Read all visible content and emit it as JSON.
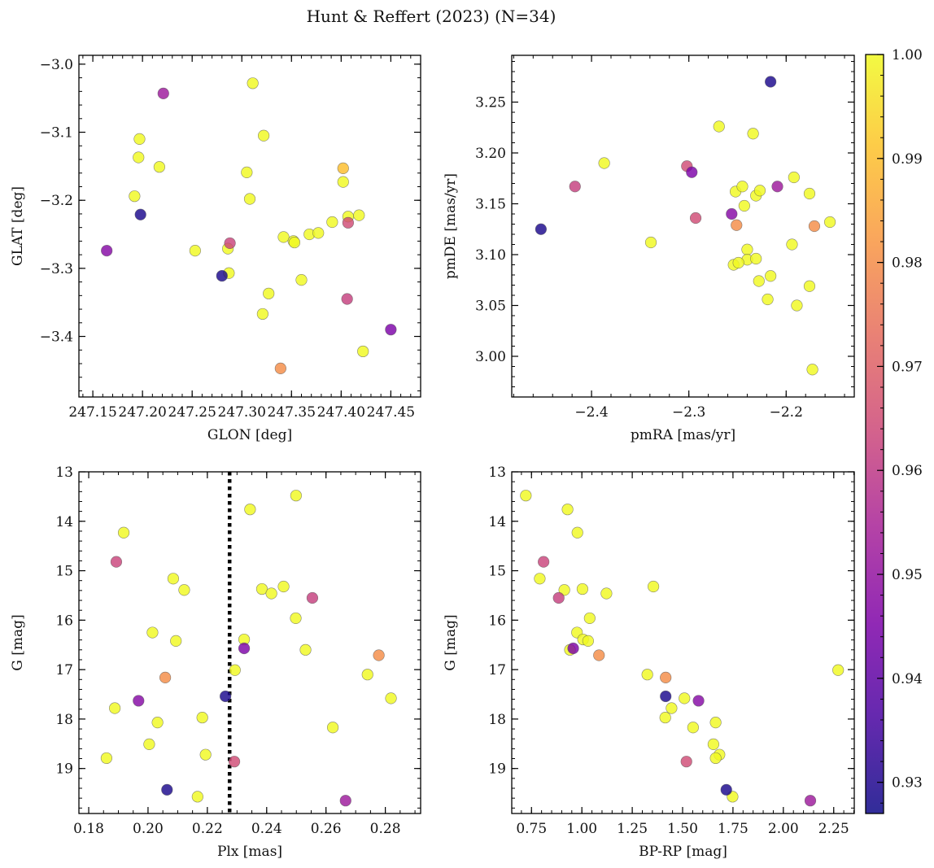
{
  "figure": {
    "title": "Hunt & Reffert (2023) (N=34)"
  },
  "chart_data": [
    {
      "type": "scatter",
      "id": "glon-glat",
      "xlabel": "GLON [deg]",
      "ylabel": "GLAT [deg]",
      "xlim": [
        247.136,
        247.48
      ],
      "ylim": [
        -3.489,
        -2.987
      ],
      "yinvert": false,
      "xticks": [
        247.15,
        247.2,
        247.25,
        247.3,
        247.35,
        247.4,
        247.45
      ],
      "xtick_labels": [
        "247.15",
        "247.20",
        "247.25",
        "247.30",
        "247.35",
        "247.40",
        "247.45"
      ],
      "xminor": 0.01,
      "yticks": [
        -3.4,
        -3.3,
        -3.2,
        -3.1,
        -3.0
      ],
      "ytick_labels": [
        "−3.4",
        "−3.3",
        "−3.2",
        "−3.1",
        "−3.0"
      ],
      "yminor": 0.02,
      "points": [
        {
          "x": 247.164,
          "y": -3.274,
          "p": 0.947
        },
        {
          "x": 247.221,
          "y": -3.043,
          "p": 0.952
        },
        {
          "x": 247.198,
          "y": -3.221,
          "p": 0.929
        },
        {
          "x": 247.28,
          "y": -3.311,
          "p": 0.929
        },
        {
          "x": 247.288,
          "y": -3.263,
          "p": 0.963
        },
        {
          "x": 247.407,
          "y": -3.233,
          "p": 0.965
        },
        {
          "x": 247.406,
          "y": -3.345,
          "p": 0.962
        },
        {
          "x": 247.45,
          "y": -3.39,
          "p": 0.945
        },
        {
          "x": 247.339,
          "y": -3.447,
          "p": 0.98
        },
        {
          "x": 247.402,
          "y": -3.153,
          "p": 0.99
        },
        {
          "x": 247.311,
          "y": -3.028,
          "p": 1.0
        },
        {
          "x": 247.197,
          "y": -3.11,
          "p": 1.0
        },
        {
          "x": 247.196,
          "y": -3.137,
          "p": 1.0
        },
        {
          "x": 247.217,
          "y": -3.151,
          "p": 1.0
        },
        {
          "x": 247.192,
          "y": -3.194,
          "p": 1.0
        },
        {
          "x": 247.322,
          "y": -3.105,
          "p": 1.0
        },
        {
          "x": 247.305,
          "y": -3.159,
          "p": 1.0
        },
        {
          "x": 247.308,
          "y": -3.198,
          "p": 1.0
        },
        {
          "x": 247.253,
          "y": -3.274,
          "p": 1.0
        },
        {
          "x": 247.286,
          "y": -3.271,
          "p": 1.0
        },
        {
          "x": 247.287,
          "y": -3.307,
          "p": 1.0
        },
        {
          "x": 247.342,
          "y": -3.254,
          "p": 1.0
        },
        {
          "x": 247.352,
          "y": -3.26,
          "p": 1.0
        },
        {
          "x": 247.353,
          "y": -3.262,
          "p": 1.0
        },
        {
          "x": 247.368,
          "y": -3.25,
          "p": 1.0
        },
        {
          "x": 247.377,
          "y": -3.248,
          "p": 1.0
        },
        {
          "x": 247.391,
          "y": -3.232,
          "p": 1.0
        },
        {
          "x": 247.402,
          "y": -3.173,
          "p": 1.0
        },
        {
          "x": 247.407,
          "y": -3.224,
          "p": 1.0
        },
        {
          "x": 247.418,
          "y": -3.222,
          "p": 1.0
        },
        {
          "x": 247.327,
          "y": -3.337,
          "p": 1.0
        },
        {
          "x": 247.36,
          "y": -3.317,
          "p": 1.0
        },
        {
          "x": 247.321,
          "y": -3.367,
          "p": 1.0
        },
        {
          "x": 247.422,
          "y": -3.422,
          "p": 1.0
        }
      ]
    },
    {
      "type": "scatter",
      "id": "pm",
      "xlabel": "pmRA [mas/yr]",
      "ylabel": "pmDE [mas/yr]",
      "xlim": [
        -2.482,
        -2.13
      ],
      "ylim": [
        2.96,
        3.296
      ],
      "yinvert": false,
      "xticks": [
        -2.4,
        -2.3,
        -2.2
      ],
      "xtick_labels": [
        "−2.4",
        "−2.3",
        "−2.2"
      ],
      "xminor": 0.02,
      "yticks": [
        3.0,
        3.05,
        3.1,
        3.15,
        3.2,
        3.25
      ],
      "ytick_labels": [
        "3.00",
        "3.05",
        "3.10",
        "3.15",
        "3.20",
        "3.25"
      ],
      "yminor": 0.01,
      "points": [
        {
          "x": -2.452,
          "y": 3.125,
          "p": 0.929
        },
        {
          "x": -2.417,
          "y": 3.167,
          "p": 0.962
        },
        {
          "x": -2.302,
          "y": 3.187,
          "p": 0.965
        },
        {
          "x": -2.297,
          "y": 3.181,
          "p": 0.945
        },
        {
          "x": -2.293,
          "y": 3.136,
          "p": 0.965
        },
        {
          "x": -2.256,
          "y": 3.14,
          "p": 0.947
        },
        {
          "x": -2.216,
          "y": 3.27,
          "p": 0.929
        },
        {
          "x": -2.209,
          "y": 3.167,
          "p": 0.952
        },
        {
          "x": -2.251,
          "y": 3.129,
          "p": 0.98
        },
        {
          "x": -2.171,
          "y": 3.128,
          "p": 0.98
        },
        {
          "x": -2.387,
          "y": 3.19,
          "p": 1.0
        },
        {
          "x": -2.339,
          "y": 3.112,
          "p": 1.0
        },
        {
          "x": -2.269,
          "y": 3.226,
          "p": 1.0
        },
        {
          "x": -2.234,
          "y": 3.219,
          "p": 1.0
        },
        {
          "x": -2.252,
          "y": 3.162,
          "p": 1.0
        },
        {
          "x": -2.245,
          "y": 3.167,
          "p": 1.0
        },
        {
          "x": -2.243,
          "y": 3.148,
          "p": 1.0
        },
        {
          "x": -2.231,
          "y": 3.158,
          "p": 1.0
        },
        {
          "x": -2.227,
          "y": 3.163,
          "p": 1.0
        },
        {
          "x": -2.192,
          "y": 3.176,
          "p": 1.0
        },
        {
          "x": -2.176,
          "y": 3.16,
          "p": 1.0
        },
        {
          "x": -2.155,
          "y": 3.132,
          "p": 1.0
        },
        {
          "x": -2.194,
          "y": 3.11,
          "p": 1.0
        },
        {
          "x": -2.24,
          "y": 3.105,
          "p": 1.0
        },
        {
          "x": -2.24,
          "y": 3.095,
          "p": 1.0
        },
        {
          "x": -2.231,
          "y": 3.096,
          "p": 1.0
        },
        {
          "x": -2.254,
          "y": 3.09,
          "p": 1.0
        },
        {
          "x": -2.249,
          "y": 3.092,
          "p": 1.0
        },
        {
          "x": -2.216,
          "y": 3.079,
          "p": 1.0
        },
        {
          "x": -2.228,
          "y": 3.074,
          "p": 1.0
        },
        {
          "x": -2.219,
          "y": 3.056,
          "p": 1.0
        },
        {
          "x": -2.176,
          "y": 3.069,
          "p": 1.0
        },
        {
          "x": -2.189,
          "y": 3.05,
          "p": 1.0
        },
        {
          "x": -2.173,
          "y": 2.987,
          "p": 1.0
        }
      ]
    },
    {
      "type": "scatter",
      "id": "plx-g",
      "xlabel": "Plx [mas]",
      "ylabel": "G [mag]",
      "xlim": [
        0.1767,
        0.2919
      ],
      "ylim": [
        13.0,
        19.91
      ],
      "yinvert": true,
      "xticks": [
        0.18,
        0.2,
        0.22,
        0.24,
        0.26,
        0.28
      ],
      "xtick_labels": [
        "0.18",
        "0.20",
        "0.22",
        "0.24",
        "0.26",
        "0.28"
      ],
      "xminor": 0.005,
      "yticks": [
        13,
        14,
        15,
        16,
        17,
        18,
        19
      ],
      "ytick_labels": [
        "13",
        "14",
        "15",
        "16",
        "17",
        "18",
        "19"
      ],
      "yminor": 0.2,
      "vline": {
        "x": 0.2275
      },
      "points": [
        {
          "x": 0.1893,
          "y": 14.82,
          "p": 0.963
        },
        {
          "x": 0.1968,
          "y": 17.63,
          "p": 0.947
        },
        {
          "x": 0.2064,
          "y": 19.43,
          "p": 0.929
        },
        {
          "x": 0.2058,
          "y": 17.16,
          "p": 0.98
        },
        {
          "x": 0.2261,
          "y": 17.54,
          "p": 0.929
        },
        {
          "x": 0.2324,
          "y": 16.57,
          "p": 0.945
        },
        {
          "x": 0.2291,
          "y": 18.86,
          "p": 0.965
        },
        {
          "x": 0.2554,
          "y": 15.55,
          "p": 0.962
        },
        {
          "x": 0.2778,
          "y": 16.71,
          "p": 0.98
        },
        {
          "x": 0.2666,
          "y": 19.65,
          "p": 0.952
        },
        {
          "x": 0.1918,
          "y": 14.23,
          "p": 1.0
        },
        {
          "x": 0.2499,
          "y": 13.48,
          "p": 1.0
        },
        {
          "x": 0.2344,
          "y": 13.76,
          "p": 1.0
        },
        {
          "x": 0.2085,
          "y": 15.16,
          "p": 1.0
        },
        {
          "x": 0.2122,
          "y": 15.39,
          "p": 1.0
        },
        {
          "x": 0.2384,
          "y": 15.37,
          "p": 1.0
        },
        {
          "x": 0.2416,
          "y": 15.46,
          "p": 1.0
        },
        {
          "x": 0.2457,
          "y": 15.32,
          "p": 1.0
        },
        {
          "x": 0.2015,
          "y": 16.25,
          "p": 1.0
        },
        {
          "x": 0.2094,
          "y": 16.42,
          "p": 1.0
        },
        {
          "x": 0.2324,
          "y": 16.39,
          "p": 1.0
        },
        {
          "x": 0.2498,
          "y": 15.96,
          "p": 1.0
        },
        {
          "x": 0.2531,
          "y": 16.6,
          "p": 1.0
        },
        {
          "x": 0.2293,
          "y": 17.01,
          "p": 1.0
        },
        {
          "x": 0.274,
          "y": 17.1,
          "p": 1.0
        },
        {
          "x": 0.2819,
          "y": 17.58,
          "p": 1.0
        },
        {
          "x": 0.1888,
          "y": 17.78,
          "p": 1.0
        },
        {
          "x": 0.2032,
          "y": 18.07,
          "p": 1.0
        },
        {
          "x": 0.2183,
          "y": 17.97,
          "p": 1.0
        },
        {
          "x": 0.2623,
          "y": 18.17,
          "p": 1.0
        },
        {
          "x": 0.2004,
          "y": 18.51,
          "p": 1.0
        },
        {
          "x": 0.186,
          "y": 18.79,
          "p": 1.0
        },
        {
          "x": 0.2194,
          "y": 18.72,
          "p": 1.0
        },
        {
          "x": 0.2167,
          "y": 19.57,
          "p": 1.0
        }
      ]
    },
    {
      "type": "scatter",
      "id": "cmd",
      "xlabel": "BP-RP [mag]",
      "ylabel": "G [mag]",
      "xlim": [
        0.652,
        2.352
      ],
      "ylim": [
        13.0,
        19.91
      ],
      "yinvert": true,
      "xticks": [
        0.75,
        1.0,
        1.25,
        1.5,
        1.75,
        2.0,
        2.25
      ],
      "xtick_labels": [
        "0.75",
        "1.00",
        "1.25",
        "1.50",
        "1.75",
        "2.00",
        "2.25"
      ],
      "xminor": 0.05,
      "yticks": [
        13,
        14,
        15,
        16,
        17,
        18,
        19
      ],
      "ytick_labels": [
        "13",
        "14",
        "15",
        "16",
        "17",
        "18",
        "19"
      ],
      "yminor": 0.2,
      "points": [
        {
          "x": 0.81,
          "y": 14.82,
          "p": 0.963
        },
        {
          "x": 0.885,
          "y": 15.55,
          "p": 0.962
        },
        {
          "x": 0.957,
          "y": 16.57,
          "p": 0.945
        },
        {
          "x": 1.085,
          "y": 16.71,
          "p": 0.98
        },
        {
          "x": 1.416,
          "y": 17.16,
          "p": 0.98
        },
        {
          "x": 1.416,
          "y": 17.54,
          "p": 0.929
        },
        {
          "x": 1.579,
          "y": 17.63,
          "p": 0.947
        },
        {
          "x": 1.519,
          "y": 18.86,
          "p": 0.965
        },
        {
          "x": 1.717,
          "y": 19.43,
          "p": 0.929
        },
        {
          "x": 2.134,
          "y": 19.65,
          "p": 0.952
        },
        {
          "x": 0.722,
          "y": 13.48,
          "p": 1.0
        },
        {
          "x": 0.929,
          "y": 13.76,
          "p": 1.0
        },
        {
          "x": 0.978,
          "y": 14.23,
          "p": 1.0
        },
        {
          "x": 0.791,
          "y": 15.16,
          "p": 1.0
        },
        {
          "x": 0.913,
          "y": 15.39,
          "p": 1.0
        },
        {
          "x": 1.003,
          "y": 15.37,
          "p": 1.0
        },
        {
          "x": 1.122,
          "y": 15.46,
          "p": 1.0
        },
        {
          "x": 1.355,
          "y": 15.32,
          "p": 1.0
        },
        {
          "x": 1.039,
          "y": 15.96,
          "p": 1.0
        },
        {
          "x": 0.976,
          "y": 16.25,
          "p": 1.0
        },
        {
          "x": 1.006,
          "y": 16.39,
          "p": 1.0
        },
        {
          "x": 1.031,
          "y": 16.42,
          "p": 1.0
        },
        {
          "x": 0.941,
          "y": 16.6,
          "p": 1.0
        },
        {
          "x": 1.325,
          "y": 17.1,
          "p": 1.0
        },
        {
          "x": 1.509,
          "y": 17.58,
          "p": 1.0
        },
        {
          "x": 1.445,
          "y": 17.78,
          "p": 1.0
        },
        {
          "x": 1.414,
          "y": 17.97,
          "p": 1.0
        },
        {
          "x": 1.664,
          "y": 18.07,
          "p": 1.0
        },
        {
          "x": 1.552,
          "y": 18.17,
          "p": 1.0
        },
        {
          "x": 1.653,
          "y": 18.51,
          "p": 1.0
        },
        {
          "x": 1.683,
          "y": 18.72,
          "p": 1.0
        },
        {
          "x": 1.664,
          "y": 18.79,
          "p": 1.0
        },
        {
          "x": 1.748,
          "y": 19.57,
          "p": 1.0
        },
        {
          "x": 2.272,
          "y": 17.01,
          "p": 1.0
        }
      ]
    }
  ],
  "colorbar": {
    "min": 0.927,
    "max": 1.0,
    "ticks": [
      0.93,
      0.94,
      0.95,
      0.96,
      0.97,
      0.98,
      0.99,
      1.0
    ],
    "tick_labels": [
      "0.93",
      "0.94",
      "0.95",
      "0.96",
      "0.97",
      "0.98",
      "0.99",
      "1.00"
    ],
    "colormap": "plasma"
  },
  "styles": {
    "vline_color": "#000000",
    "marker_edge": "#555555",
    "marker_alpha": 0.82
  }
}
